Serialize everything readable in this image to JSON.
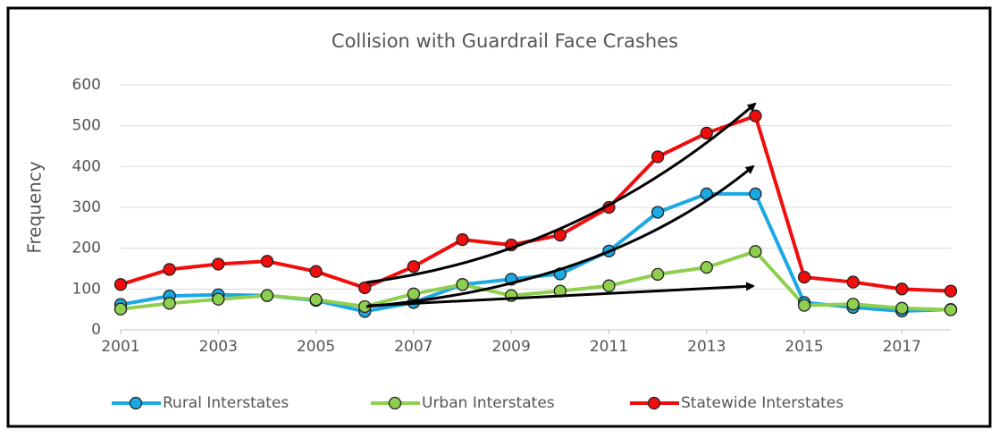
{
  "chart_data": {
    "type": "line",
    "title": "Collision with Guardrail Face Crashes",
    "y_label": "Frequency",
    "x": [
      2001,
      2002,
      2003,
      2004,
      2005,
      2006,
      2007,
      2008,
      2009,
      2010,
      2011,
      2012,
      2013,
      2014,
      2015,
      2016,
      2017,
      2018
    ],
    "xlim": [
      2001,
      2018
    ],
    "xticks": [
      2001,
      2003,
      2005,
      2007,
      2009,
      2011,
      2013,
      2015,
      2017
    ],
    "ylim": [
      0,
      600
    ],
    "yticks": [
      0,
      100,
      200,
      300,
      400,
      500,
      600
    ],
    "grid": true,
    "legend": "bottom",
    "series": [
      {
        "name": "Rural Interstates",
        "color": "#1ca8e3",
        "values": [
          62,
          83,
          86,
          84,
          72,
          45,
          67,
          111,
          124,
          137,
          193,
          288,
          333,
          333,
          67,
          55,
          46,
          50
        ]
      },
      {
        "name": "Urban Interstates",
        "color": "#8fcf4f",
        "values": [
          51,
          65,
          75,
          84,
          74,
          57,
          88,
          111,
          84,
          95,
          108,
          136,
          153,
          192,
          60,
          63,
          53,
          49
        ]
      },
      {
        "name": "Statewide Interstates",
        "color": "#f20c0c",
        "values": [
          111,
          148,
          161,
          168,
          143,
          103,
          155,
          221,
          208,
          232,
          300,
          424,
          482,
          524,
          129,
          117,
          100,
          95
        ]
      }
    ]
  }
}
